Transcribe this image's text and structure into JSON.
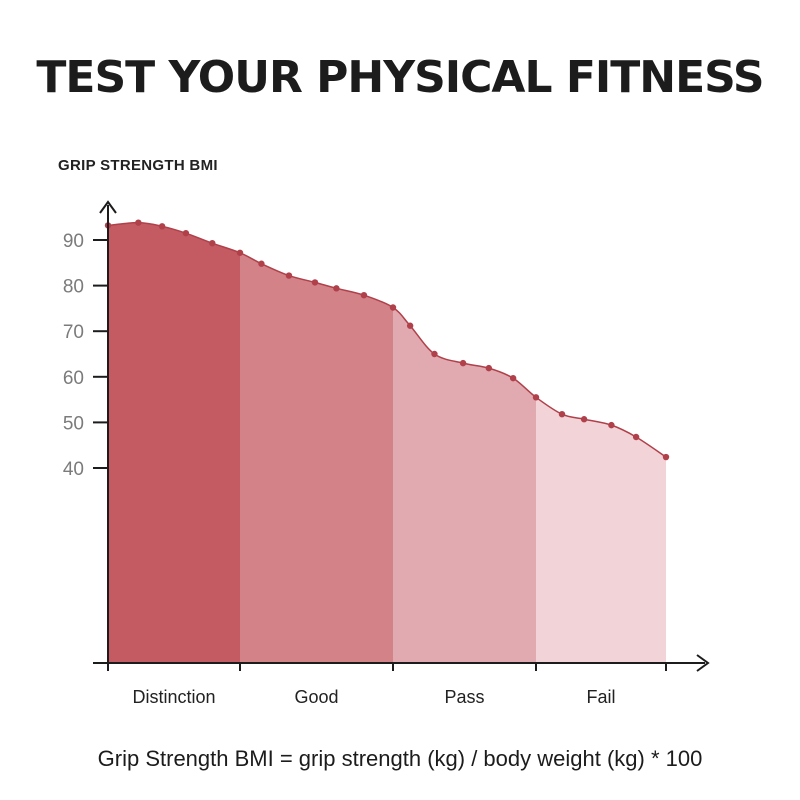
{
  "title": "TEST YOUR PHYSICAL FITNESS",
  "formula": "Grip Strength BMI = grip strength (kg) / body weight (kg) * 100",
  "chart_data": {
    "type": "area",
    "ylabel": "GRIP STRENGTH BMI",
    "xlabel": "",
    "y_ticks": [
      40,
      50,
      60,
      70,
      80,
      90
    ],
    "categories": [
      "Distinction",
      "Good",
      "Pass",
      "Fail"
    ],
    "category_colors": [
      "#c45a62",
      "#d38288",
      "#e0aab0",
      "#f2d3d7"
    ],
    "line_color": "#b0404a",
    "points": [
      {
        "x": 0.0,
        "y": 93.2
      },
      {
        "x": 0.23,
        "y": 93.8
      },
      {
        "x": 0.41,
        "y": 93.0
      },
      {
        "x": 0.59,
        "y": 91.5
      },
      {
        "x": 0.79,
        "y": 89.3
      },
      {
        "x": 1.0,
        "y": 87.2
      },
      {
        "x": 1.14,
        "y": 84.8
      },
      {
        "x": 1.32,
        "y": 82.2
      },
      {
        "x": 1.49,
        "y": 80.7
      },
      {
        "x": 1.63,
        "y": 79.4
      },
      {
        "x": 1.81,
        "y": 77.9
      },
      {
        "x": 2.0,
        "y": 75.2
      },
      {
        "x": 2.12,
        "y": 71.2
      },
      {
        "x": 2.29,
        "y": 65.0
      },
      {
        "x": 2.49,
        "y": 63.0
      },
      {
        "x": 2.67,
        "y": 61.9
      },
      {
        "x": 2.84,
        "y": 59.7
      },
      {
        "x": 3.0,
        "y": 55.5
      },
      {
        "x": 3.2,
        "y": 51.8
      },
      {
        "x": 3.37,
        "y": 50.7
      },
      {
        "x": 3.58,
        "y": 49.4
      },
      {
        "x": 3.77,
        "y": 46.8
      },
      {
        "x": 4.0,
        "y": 42.4
      }
    ]
  }
}
